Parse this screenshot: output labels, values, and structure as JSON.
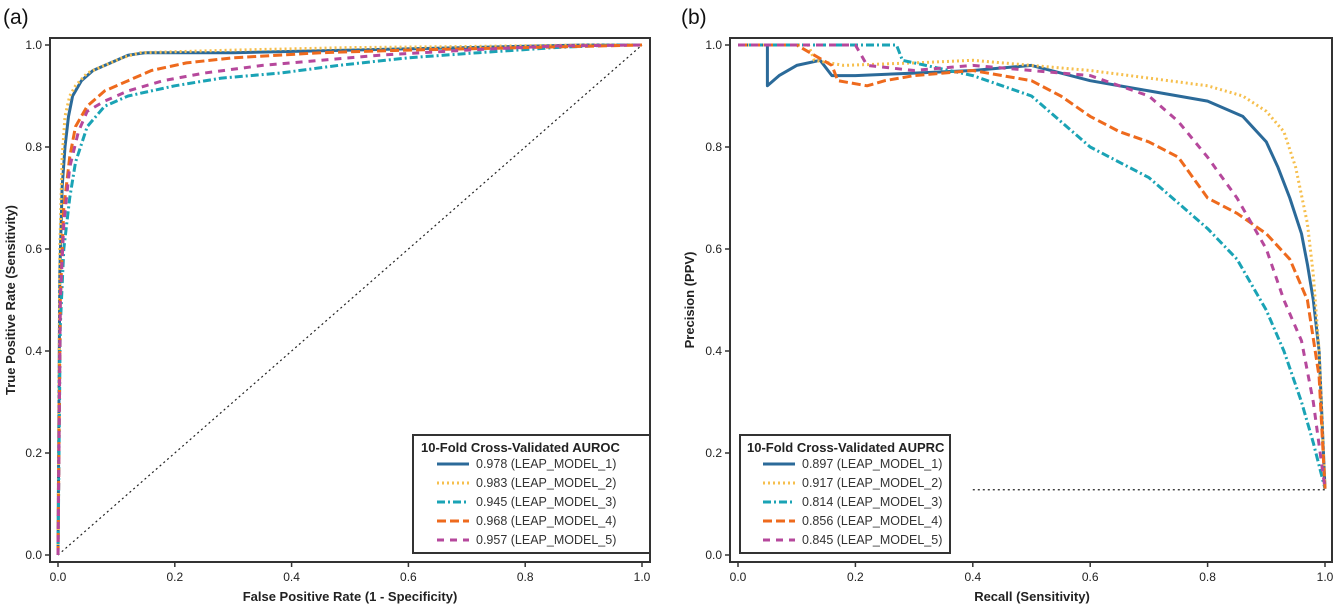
{
  "chart_data": [
    {
      "type": "line",
      "panel_label": "(a)",
      "xlabel": "False Positive Rate (1 - Specificity)",
      "ylabel": "True Positive Rate (Sensitivity)",
      "xlim": [
        0,
        1
      ],
      "ylim": [
        0,
        1
      ],
      "xticks": [
        "0.0",
        "0.2",
        "0.4",
        "0.6",
        "0.8",
        "1.0"
      ],
      "yticks": [
        "0.0",
        "0.2",
        "0.4",
        "0.6",
        "0.8",
        "1.0"
      ],
      "grid": false,
      "legend_title": "10-Fold Cross-Validated AUROC",
      "legend_position": "bottom-right",
      "reference_line": {
        "x": [
          0,
          1
        ],
        "y": [
          0,
          1
        ],
        "style": "dotted"
      },
      "series": [
        {
          "name": "0.978 (LEAP_MODEL_1)",
          "color": "#2b6a99",
          "style": "solid",
          "x": [
            0,
            0.003,
            0.007,
            0.012,
            0.018,
            0.025,
            0.04,
            0.06,
            0.09,
            0.12,
            0.15,
            0.3,
            0.5,
            0.7,
            0.9,
            1.0
          ],
          "y": [
            0,
            0.55,
            0.72,
            0.8,
            0.86,
            0.9,
            0.93,
            0.95,
            0.965,
            0.98,
            0.985,
            0.985,
            0.99,
            0.995,
            1.0,
            1.0
          ]
        },
        {
          "name": "0.983 (LEAP_MODEL_2)",
          "color": "#f6bf4d",
          "style": "dotted",
          "x": [
            0,
            0.003,
            0.007,
            0.012,
            0.02,
            0.03,
            0.05,
            0.08,
            0.11,
            0.14,
            0.3,
            0.5,
            0.7,
            0.9,
            1.0
          ],
          "y": [
            0,
            0.6,
            0.78,
            0.86,
            0.9,
            0.92,
            0.945,
            0.96,
            0.975,
            0.985,
            0.99,
            0.995,
            0.997,
            1.0,
            1.0
          ]
        },
        {
          "name": "0.945 (LEAP_MODEL_3)",
          "color": "#1aa3b5",
          "style": "dashdot",
          "x": [
            0,
            0.004,
            0.01,
            0.02,
            0.03,
            0.05,
            0.08,
            0.12,
            0.16,
            0.2,
            0.28,
            0.38,
            0.48,
            0.6,
            0.72,
            0.85,
            0.95,
            1.0
          ],
          "y": [
            0,
            0.45,
            0.6,
            0.7,
            0.77,
            0.84,
            0.88,
            0.9,
            0.91,
            0.92,
            0.935,
            0.945,
            0.96,
            0.975,
            0.985,
            0.995,
            1.0,
            1.0
          ]
        },
        {
          "name": "0.968 (LEAP_MODEL_4)",
          "color": "#ee6a1d",
          "style": "dashed",
          "x": [
            0,
            0.004,
            0.01,
            0.02,
            0.03,
            0.05,
            0.08,
            0.12,
            0.16,
            0.22,
            0.3,
            0.45,
            0.6,
            0.8,
            1.0
          ],
          "y": [
            0,
            0.5,
            0.68,
            0.78,
            0.84,
            0.88,
            0.91,
            0.93,
            0.95,
            0.965,
            0.975,
            0.985,
            0.99,
            0.995,
            1.0
          ]
        },
        {
          "name": "0.957 (LEAP_MODEL_5)",
          "color": "#b6489c",
          "style": "dash",
          "x": [
            0,
            0.004,
            0.01,
            0.02,
            0.035,
            0.05,
            0.08,
            0.12,
            0.18,
            0.25,
            0.35,
            0.45,
            0.55,
            0.7,
            0.85,
            1.0
          ],
          "y": [
            0,
            0.5,
            0.65,
            0.76,
            0.83,
            0.87,
            0.89,
            0.91,
            0.93,
            0.945,
            0.96,
            0.97,
            0.98,
            0.99,
            0.998,
            1.0
          ]
        }
      ]
    },
    {
      "type": "line",
      "panel_label": "(b)",
      "xlabel": "Recall (Sensitivity)",
      "ylabel": "Precision (PPV)",
      "xlim": [
        0,
        1
      ],
      "ylim": [
        0,
        1
      ],
      "xticks": [
        "0.0",
        "0.2",
        "0.4",
        "0.6",
        "0.8",
        "1.0"
      ],
      "yticks": [
        "0.0",
        "0.2",
        "0.4",
        "0.6",
        "0.8",
        "1.0"
      ],
      "grid": false,
      "legend_title": "10-Fold Cross-Validated AUPRC",
      "legend_position": "bottom-left",
      "reference_line": {
        "x": [
          0.4,
          1
        ],
        "y": [
          0.128,
          0.128
        ],
        "style": "dotted"
      },
      "series": [
        {
          "name": "0.897 (LEAP_MODEL_1)",
          "color": "#2b6a99",
          "style": "solid",
          "x": [
            0,
            0.05,
            0.05,
            0.07,
            0.1,
            0.14,
            0.16,
            0.17,
            0.2,
            0.3,
            0.4,
            0.5,
            0.6,
            0.7,
            0.8,
            0.86,
            0.9,
            0.92,
            0.94,
            0.96,
            0.97,
            0.98,
            0.99,
            1.0
          ],
          "y": [
            1.0,
            1.0,
            0.92,
            0.94,
            0.96,
            0.97,
            0.94,
            0.94,
            0.94,
            0.945,
            0.95,
            0.96,
            0.93,
            0.91,
            0.89,
            0.86,
            0.81,
            0.76,
            0.7,
            0.63,
            0.57,
            0.5,
            0.4,
            0.13
          ]
        },
        {
          "name": "0.917 (LEAP_MODEL_2)",
          "color": "#f6bf4d",
          "style": "dotted",
          "x": [
            0,
            0.12,
            0.13,
            0.18,
            0.3,
            0.4,
            0.5,
            0.6,
            0.7,
            0.8,
            0.86,
            0.9,
            0.93,
            0.95,
            0.97,
            0.98,
            0.99,
            1.0
          ],
          "y": [
            1.0,
            1.0,
            0.97,
            0.96,
            0.965,
            0.97,
            0.96,
            0.95,
            0.935,
            0.92,
            0.9,
            0.87,
            0.83,
            0.76,
            0.65,
            0.55,
            0.4,
            0.13
          ]
        },
        {
          "name": "0.814 (LEAP_MODEL_3)",
          "color": "#1aa3b5",
          "style": "dashdot",
          "x": [
            0,
            0.27,
            0.28,
            0.32,
            0.36,
            0.4,
            0.45,
            0.5,
            0.55,
            0.6,
            0.65,
            0.7,
            0.75,
            0.8,
            0.85,
            0.9,
            0.93,
            0.96,
            0.98,
            1.0
          ],
          "y": [
            1.0,
            1.0,
            0.97,
            0.96,
            0.95,
            0.94,
            0.92,
            0.9,
            0.85,
            0.8,
            0.77,
            0.74,
            0.69,
            0.64,
            0.58,
            0.48,
            0.4,
            0.3,
            0.22,
            0.13
          ]
        },
        {
          "name": "0.856 (LEAP_MODEL_4)",
          "color": "#ee6a1d",
          "style": "dashed",
          "x": [
            0,
            0.1,
            0.16,
            0.17,
            0.22,
            0.25,
            0.3,
            0.4,
            0.5,
            0.55,
            0.6,
            0.65,
            0.7,
            0.75,
            0.8,
            0.85,
            0.9,
            0.94,
            0.97,
            0.99,
            1.0
          ],
          "y": [
            1.0,
            1.0,
            0.96,
            0.93,
            0.92,
            0.93,
            0.94,
            0.95,
            0.93,
            0.9,
            0.86,
            0.83,
            0.81,
            0.78,
            0.7,
            0.67,
            0.63,
            0.58,
            0.5,
            0.35,
            0.13
          ]
        },
        {
          "name": "0.845 (LEAP_MODEL_5)",
          "color": "#b6489c",
          "style": "dash",
          "x": [
            0,
            0.2,
            0.22,
            0.3,
            0.4,
            0.5,
            0.6,
            0.65,
            0.7,
            0.75,
            0.8,
            0.85,
            0.9,
            0.93,
            0.96,
            0.98,
            1.0
          ],
          "y": [
            1.0,
            1.0,
            0.96,
            0.95,
            0.96,
            0.95,
            0.94,
            0.92,
            0.9,
            0.85,
            0.78,
            0.7,
            0.6,
            0.5,
            0.42,
            0.3,
            0.13
          ]
        }
      ]
    }
  ]
}
